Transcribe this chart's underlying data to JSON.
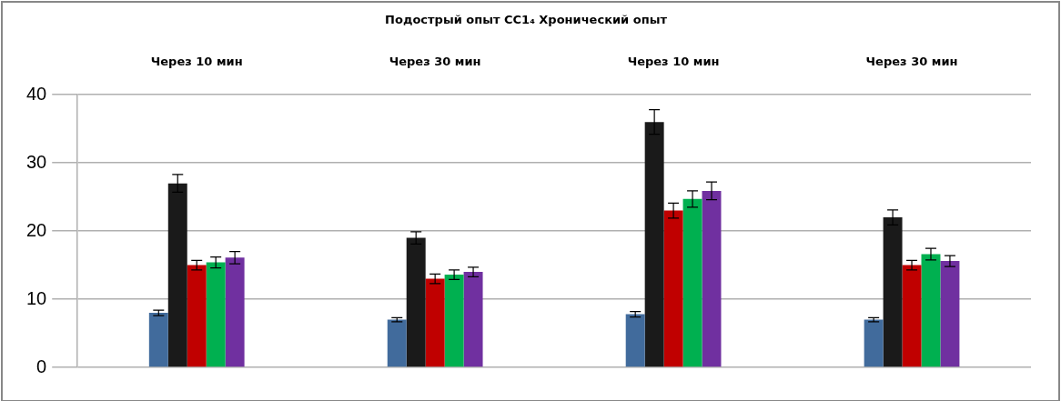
{
  "chart_data": {
    "type": "bar",
    "title": "Подострый опыт CC1₄ Хронический опыт",
    "categories": [
      "Через 10 мин",
      "Через 30 мин",
      "Через 10 мин",
      "Через 30 мин"
    ],
    "series": [
      {
        "color": "#416b9c",
        "values": [
          8.0,
          7.0,
          7.8,
          7.0
        ],
        "errors": [
          0.4,
          0.3,
          0.4,
          0.3
        ]
      },
      {
        "color": "#1a1a1a",
        "values": [
          27,
          19,
          36,
          22
        ],
        "errors": [
          1.3,
          0.9,
          1.8,
          1.1
        ]
      },
      {
        "color": "#c00000",
        "values": [
          15,
          13,
          23,
          15
        ],
        "errors": [
          0.7,
          0.7,
          1.1,
          0.7
        ]
      },
      {
        "color": "#00b050",
        "values": [
          15.4,
          13.6,
          24.7,
          16.6
        ],
        "errors": [
          0.8,
          0.7,
          1.2,
          0.85
        ]
      },
      {
        "color": "#7030a0",
        "values": [
          16.1,
          14.0,
          25.9,
          15.6
        ],
        "errors": [
          0.9,
          0.7,
          1.3,
          0.8
        ]
      }
    ],
    "ylim": [
      0,
      40
    ],
    "yticks": [
      0,
      10,
      20,
      30,
      40
    ],
    "grid": "y",
    "legend": false
  }
}
